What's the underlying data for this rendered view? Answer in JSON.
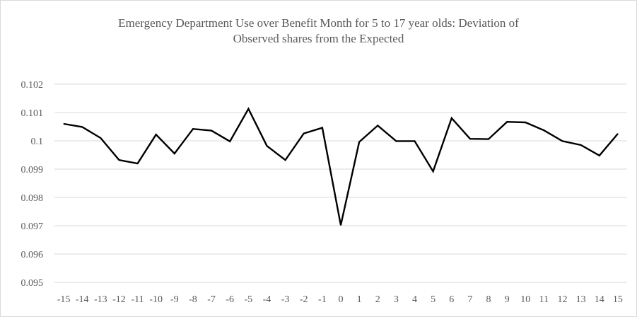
{
  "chart_data": {
    "type": "line",
    "title_lines": [
      "Emergency Department Use over Benefit Month for 5 to 17 year olds: Deviation of",
      "Observed shares from the Expected"
    ],
    "xlabel": "",
    "ylabel": "",
    "x": [
      -15,
      -14,
      -13,
      -12,
      -11,
      -10,
      -9,
      -8,
      -7,
      -6,
      -5,
      -4,
      -3,
      -2,
      -1,
      0,
      1,
      2,
      3,
      4,
      5,
      6,
      7,
      8,
      9,
      10,
      11,
      12,
      13,
      14,
      15
    ],
    "x_tick_labels": [
      "-15",
      "-14",
      "-13",
      "-12",
      "-11",
      "-10",
      "-9",
      "-8",
      "-7",
      "-6",
      "-5",
      "-4",
      "-3",
      "-2",
      "-1",
      "0",
      "1",
      "2",
      "3",
      "4",
      "5",
      "6",
      "7",
      "8",
      "9",
      "10",
      "11",
      "12",
      "13",
      "14",
      "15"
    ],
    "series": [
      {
        "values": [
          0.1006,
          0.10049,
          0.1001,
          0.09932,
          0.0992,
          0.10022,
          0.09955,
          0.10042,
          0.10036,
          0.09998,
          0.10113,
          0.09982,
          0.09932,
          0.10026,
          0.10046,
          0.09702,
          0.09996,
          0.10054,
          0.09999,
          0.09999,
          0.09892,
          0.1008,
          0.10007,
          0.10006,
          0.10067,
          0.10065,
          0.10037,
          0.09999,
          0.09985,
          0.09948,
          0.10025
        ],
        "color": "#000000"
      }
    ],
    "ylim": [
      0.095,
      0.102
    ],
    "y_ticks": [
      0.095,
      0.096,
      0.097,
      0.098,
      0.099,
      0.1,
      0.101,
      0.102
    ],
    "y_tick_labels": [
      "0.095",
      "0.096",
      "0.097",
      "0.098",
      "0.099",
      "0.1",
      "0.101",
      "0.102"
    ],
    "grid": true,
    "gridline_color": "#d9d9d9",
    "legend": "none"
  }
}
